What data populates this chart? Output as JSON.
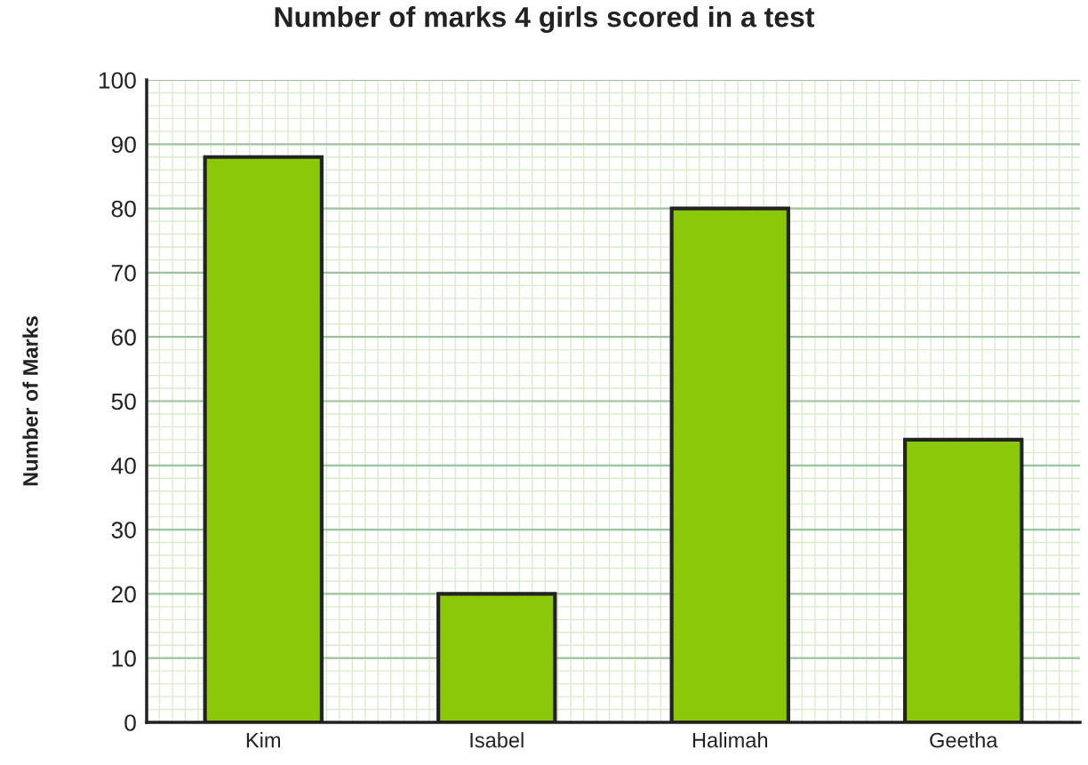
{
  "chart_data": {
    "type": "bar",
    "title": "Number of marks 4 girls scored in a test",
    "ylabel": "Number of Marks",
    "categories": [
      "Kim",
      "Isabel",
      "Halimah",
      "Geetha"
    ],
    "values": [
      88,
      20,
      80,
      44
    ],
    "color": "#8cc80a",
    "ylim": [
      0,
      100
    ],
    "yticks": [
      0,
      10,
      20,
      30,
      40,
      50,
      60,
      70,
      80,
      90,
      100
    ],
    "grid": true
  }
}
